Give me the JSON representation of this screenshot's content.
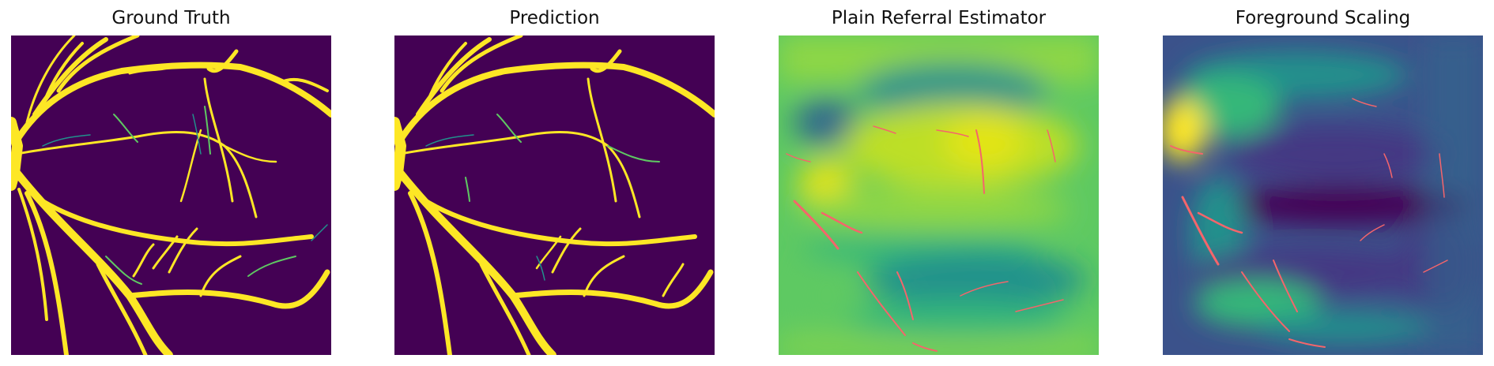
{
  "panels": [
    {
      "title": "Ground Truth",
      "kind": "vessel-mask"
    },
    {
      "title": "Prediction",
      "kind": "vessel-mask"
    },
    {
      "title": "Plain Referral Estimator",
      "kind": "heatmap"
    },
    {
      "title": "Foreground Scaling",
      "kind": "heatmap"
    }
  ],
  "colors": {
    "background_dark": "#440154",
    "vessel": "#fde725",
    "vessel_mid": "#5ec962",
    "vessel_teal": "#21918c",
    "heat_high": "#e3e418",
    "heat_mid_high": "#8fd744",
    "heat_mid": "#35b779",
    "heat_low": "#21918c",
    "heat_lower": "#31688e",
    "heat_lowest": "#443983",
    "error_overlay": "#f5656b"
  }
}
